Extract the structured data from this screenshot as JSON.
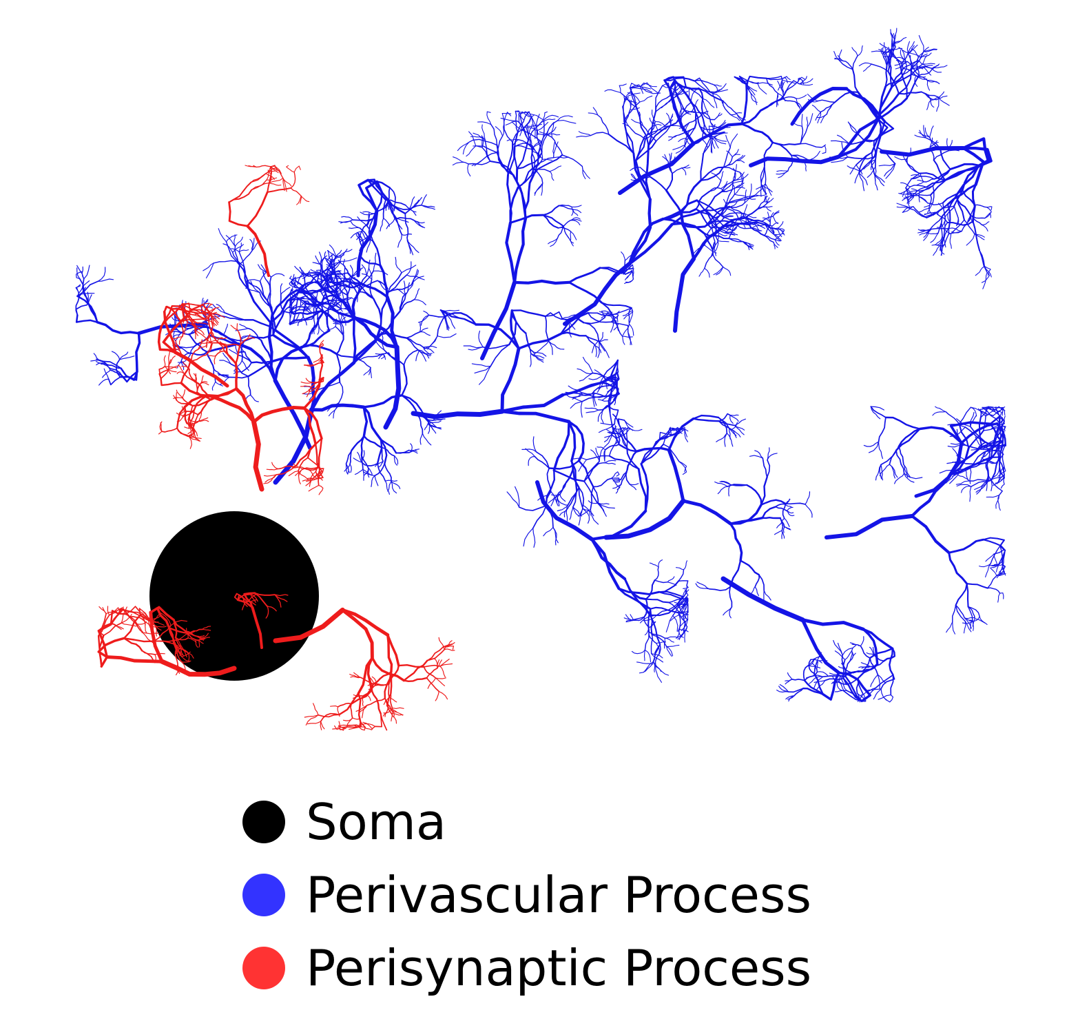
{
  "colors": {
    "soma": "#000000",
    "perivascular": "#1414e6",
    "perisynaptic": "#ee1c1c",
    "legend_perivascular": "#3333ff",
    "legend_perisynaptic": "#ff3333",
    "background": "#ffffff"
  },
  "legend": {
    "items": [
      {
        "key": "soma",
        "label": "Soma",
        "color": "#000000"
      },
      {
        "key": "perivascular",
        "label": "Perivascular Process",
        "color": "#3333ff"
      },
      {
        "key": "perisynaptic",
        "label": "Perisynaptic Process",
        "color": "#ff3333"
      }
    ]
  }
}
